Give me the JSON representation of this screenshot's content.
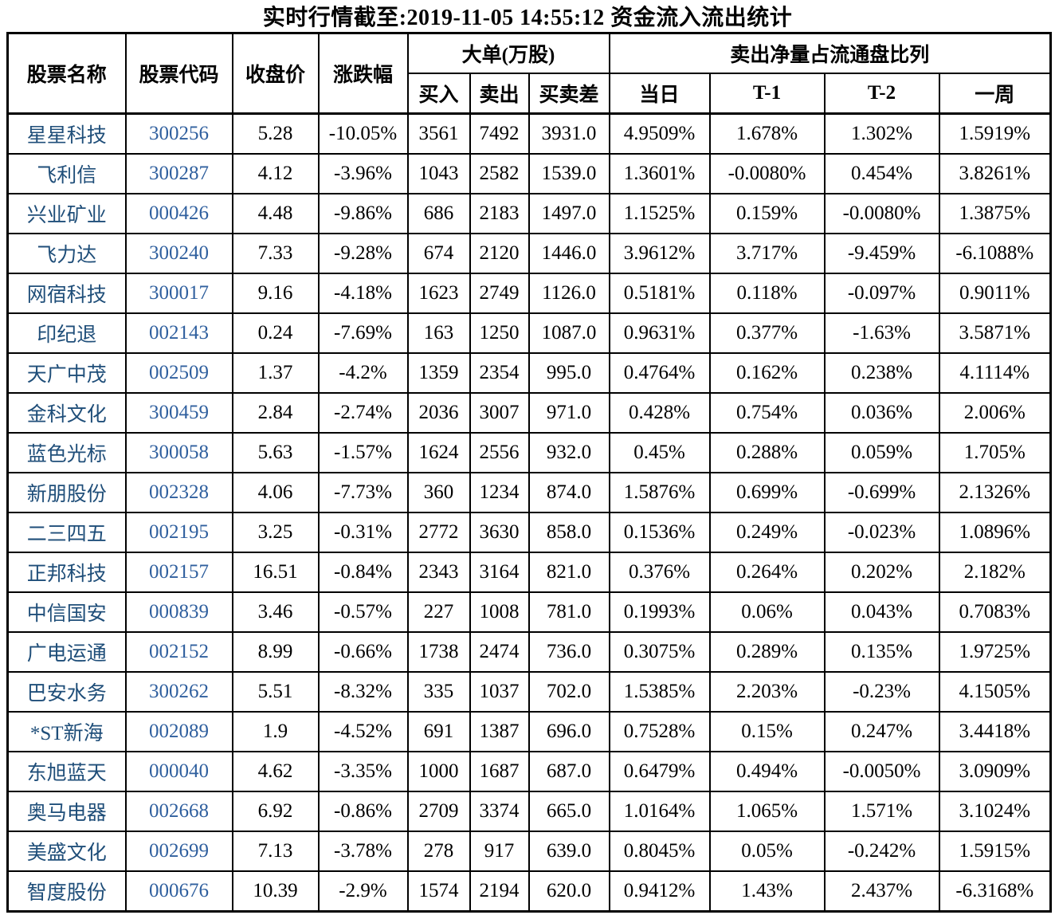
{
  "title": "实时行情截至:2019-11-05 14:55:12 资金流入流出统计",
  "colors": {
    "stock_name_text": "#1f4e79",
    "stock_code_text": "#2f5f9e",
    "body_text": "#000000",
    "border": "#000000",
    "background": "#ffffff"
  },
  "table": {
    "group_headers": {
      "big_orders": "大单(万股)",
      "net_sell_ratio": "卖出净量占流通盘比列"
    },
    "headers": {
      "stock_name": "股票名称",
      "stock_code": "股票代码",
      "close_price": "收盘价",
      "change_pct": "涨跌幅",
      "buy_in": "买入",
      "sell_out": "卖出",
      "buy_sell_diff": "买卖差",
      "today": "当日",
      "t_minus_1": "T-1",
      "t_minus_2": "T-2",
      "one_week": "一周"
    },
    "columns": [
      "name",
      "code",
      "close",
      "change",
      "buy",
      "sell",
      "diff",
      "today",
      "t1",
      "t2",
      "week"
    ],
    "rows": [
      {
        "name": "星星科技",
        "code": "300256",
        "close": "5.28",
        "change": "-10.05%",
        "buy": "3561",
        "sell": "7492",
        "diff": "3931.0",
        "today": "4.9509%",
        "t1": "1.678%",
        "t2": "1.302%",
        "week": "1.5919%"
      },
      {
        "name": "飞利信",
        "code": "300287",
        "close": "4.12",
        "change": "-3.96%",
        "buy": "1043",
        "sell": "2582",
        "diff": "1539.0",
        "today": "1.3601%",
        "t1": "-0.0080%",
        "t2": "0.454%",
        "week": "3.8261%"
      },
      {
        "name": "兴业矿业",
        "code": "000426",
        "close": "4.48",
        "change": "-9.86%",
        "buy": "686",
        "sell": "2183",
        "diff": "1497.0",
        "today": "1.1525%",
        "t1": "0.159%",
        "t2": "-0.0080%",
        "week": "1.3875%"
      },
      {
        "name": "飞力达",
        "code": "300240",
        "close": "7.33",
        "change": "-9.28%",
        "buy": "674",
        "sell": "2120",
        "diff": "1446.0",
        "today": "3.9612%",
        "t1": "3.717%",
        "t2": "-9.459%",
        "week": "-6.1088%"
      },
      {
        "name": "网宿科技",
        "code": "300017",
        "close": "9.16",
        "change": "-4.18%",
        "buy": "1623",
        "sell": "2749",
        "diff": "1126.0",
        "today": "0.5181%",
        "t1": "0.118%",
        "t2": "-0.097%",
        "week": "0.9011%"
      },
      {
        "name": "印纪退",
        "code": "002143",
        "close": "0.24",
        "change": "-7.69%",
        "buy": "163",
        "sell": "1250",
        "diff": "1087.0",
        "today": "0.9631%",
        "t1": "0.377%",
        "t2": "-1.63%",
        "week": "3.5871%"
      },
      {
        "name": "天广中茂",
        "code": "002509",
        "close": "1.37",
        "change": "-4.2%",
        "buy": "1359",
        "sell": "2354",
        "diff": "995.0",
        "today": "0.4764%",
        "t1": "0.162%",
        "t2": "0.238%",
        "week": "4.1114%"
      },
      {
        "name": "金科文化",
        "code": "300459",
        "close": "2.84",
        "change": "-2.74%",
        "buy": "2036",
        "sell": "3007",
        "diff": "971.0",
        "today": "0.428%",
        "t1": "0.754%",
        "t2": "0.036%",
        "week": "2.006%"
      },
      {
        "name": "蓝色光标",
        "code": "300058",
        "close": "5.63",
        "change": "-1.57%",
        "buy": "1624",
        "sell": "2556",
        "diff": "932.0",
        "today": "0.45%",
        "t1": "0.288%",
        "t2": "0.059%",
        "week": "1.705%"
      },
      {
        "name": "新朋股份",
        "code": "002328",
        "close": "4.06",
        "change": "-7.73%",
        "buy": "360",
        "sell": "1234",
        "diff": "874.0",
        "today": "1.5876%",
        "t1": "0.699%",
        "t2": "-0.699%",
        "week": "2.1326%"
      },
      {
        "name": "二三四五",
        "code": "002195",
        "close": "3.25",
        "change": "-0.31%",
        "buy": "2772",
        "sell": "3630",
        "diff": "858.0",
        "today": "0.1536%",
        "t1": "0.249%",
        "t2": "-0.023%",
        "week": "1.0896%"
      },
      {
        "name": "正邦科技",
        "code": "002157",
        "close": "16.51",
        "change": "-0.84%",
        "buy": "2343",
        "sell": "3164",
        "diff": "821.0",
        "today": "0.376%",
        "t1": "0.264%",
        "t2": "0.202%",
        "week": "2.182%"
      },
      {
        "name": "中信国安",
        "code": "000839",
        "close": "3.46",
        "change": "-0.57%",
        "buy": "227",
        "sell": "1008",
        "diff": "781.0",
        "today": "0.1993%",
        "t1": "0.06%",
        "t2": "0.043%",
        "week": "0.7083%"
      },
      {
        "name": "广电运通",
        "code": "002152",
        "close": "8.99",
        "change": "-0.66%",
        "buy": "1738",
        "sell": "2474",
        "diff": "736.0",
        "today": "0.3075%",
        "t1": "0.289%",
        "t2": "0.135%",
        "week": "1.9725%"
      },
      {
        "name": "巴安水务",
        "code": "300262",
        "close": "5.51",
        "change": "-8.32%",
        "buy": "335",
        "sell": "1037",
        "diff": "702.0",
        "today": "1.5385%",
        "t1": "2.203%",
        "t2": "-0.23%",
        "week": "4.1505%"
      },
      {
        "name": "*ST新海",
        "code": "002089",
        "close": "1.9",
        "change": "-4.52%",
        "buy": "691",
        "sell": "1387",
        "diff": "696.0",
        "today": "0.7528%",
        "t1": "0.15%",
        "t2": "0.247%",
        "week": "3.4418%"
      },
      {
        "name": "东旭蓝天",
        "code": "000040",
        "close": "4.62",
        "change": "-3.35%",
        "buy": "1000",
        "sell": "1687",
        "diff": "687.0",
        "today": "0.6479%",
        "t1": "0.494%",
        "t2": "-0.0050%",
        "week": "3.0909%"
      },
      {
        "name": "奥马电器",
        "code": "002668",
        "close": "6.92",
        "change": "-0.86%",
        "buy": "2709",
        "sell": "3374",
        "diff": "665.0",
        "today": "1.0164%",
        "t1": "1.065%",
        "t2": "1.571%",
        "week": "3.1024%"
      },
      {
        "name": "美盛文化",
        "code": "002699",
        "close": "7.13",
        "change": "-3.78%",
        "buy": "278",
        "sell": "917",
        "diff": "639.0",
        "today": "0.8045%",
        "t1": "0.05%",
        "t2": "-0.242%",
        "week": "1.5915%"
      },
      {
        "name": "智度股份",
        "code": "000676",
        "close": "10.39",
        "change": "-2.9%",
        "buy": "1574",
        "sell": "2194",
        "diff": "620.0",
        "today": "0.9412%",
        "t1": "1.43%",
        "t2": "2.437%",
        "week": "-6.3168%"
      }
    ]
  }
}
